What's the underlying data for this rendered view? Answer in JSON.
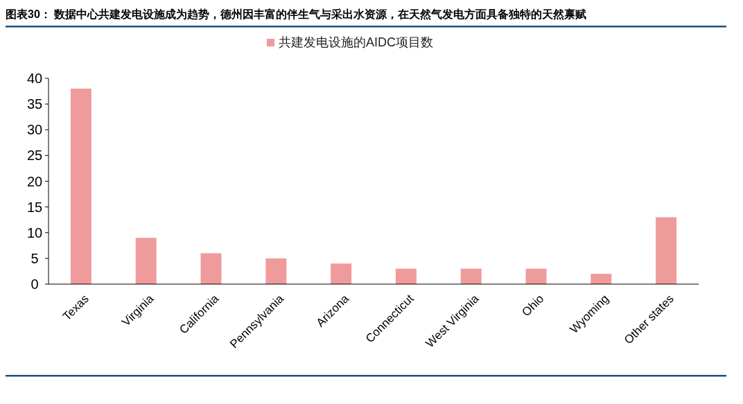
{
  "chart_data": {
    "type": "bar",
    "title": "图表30： 数据中心共建发电设施成为趋势，德州因丰富的伴生气与采出水资源，在天然气发电方面具备独特的天然禀赋",
    "categories": [
      "Texas",
      "Virginia",
      "California",
      "Pennsylvania",
      "Arizona",
      "Connecticut",
      "West Virginia",
      "Ohio",
      "Wyoming",
      "Other states"
    ],
    "series": [
      {
        "name": "共建发电设施的AIDC项目数",
        "color": "#f09b9b",
        "values": [
          38,
          9,
          6,
          5,
          4,
          3,
          3,
          3,
          2,
          13
        ]
      }
    ],
    "ylim": [
      0,
      40
    ],
    "yticks": [
      0,
      5,
      10,
      15,
      20,
      25,
      30,
      35,
      40
    ],
    "grid": false,
    "legend": "top"
  }
}
